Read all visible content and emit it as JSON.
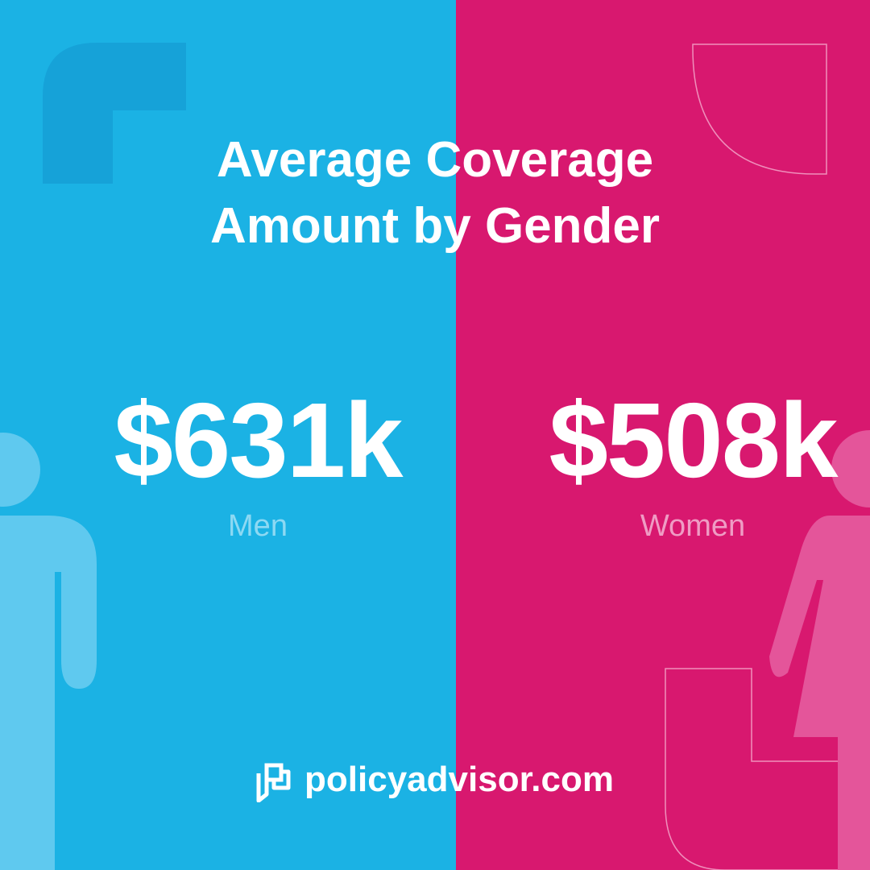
{
  "colors": {
    "men_panel": "#1bb2e4",
    "women_panel": "#d8186f",
    "text": "#ffffff",
    "men_label": "#8dd9f3",
    "women_label": "#ef9cc4"
  },
  "title": {
    "line1": "Average Coverage",
    "line2": "Amount by Gender"
  },
  "stats": {
    "men": {
      "value": "$631k",
      "label": "Men"
    },
    "women": {
      "value": "$508k",
      "label": "Women"
    }
  },
  "brand": {
    "icon": "policyadvisor-logo-icon",
    "name": "policyadvisor.com"
  },
  "decorations": {
    "men_figure": "man-figure-icon",
    "women_figure": "woman-figure-icon"
  }
}
